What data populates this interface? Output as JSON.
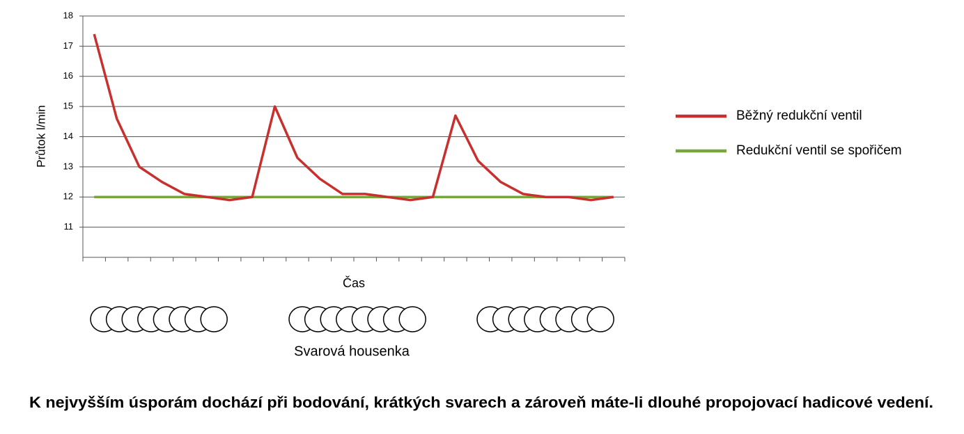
{
  "chart_data": {
    "type": "line",
    "y_label": "Průtok l/min",
    "x_label": "Čas",
    "annotations": [
      "Svarová housenka"
    ],
    "caption": "K nejvyšším úsporám dochází při bodování, krátkých svarech a zároveň máte-li dlouhé propojovací hadicové vedení.",
    "categories": [
      null,
      null,
      null,
      null,
      null,
      null,
      null,
      null,
      null,
      null,
      null,
      null,
      null,
      null,
      null,
      null,
      null,
      null,
      null,
      null,
      null,
      null,
      null,
      null
    ],
    "series": [
      {
        "name": "Běžný redukční ventil",
        "color": "#c8302e",
        "values": [
          17.4,
          14.6,
          13.0,
          12.5,
          12.1,
          12.0,
          11.9,
          12.0,
          15.0,
          13.3,
          12.6,
          12.1,
          12.1,
          12.0,
          11.9,
          12.0,
          14.7,
          13.2,
          12.5,
          12.1,
          12.0,
          12.0,
          11.9,
          12.0
        ]
      },
      {
        "name": "Redukční ventil se spořičem",
        "color": "#77a73c",
        "values": [
          12,
          12,
          12,
          12,
          12,
          12,
          12,
          12,
          12,
          12,
          12,
          12,
          12,
          12,
          12,
          12,
          12,
          12,
          12,
          12,
          12,
          12,
          12,
          12
        ]
      }
    ],
    "ylim": [
      10,
      18
    ],
    "yticks": [
      11,
      12,
      13,
      14,
      15,
      16,
      17,
      18
    ],
    "grid": true,
    "legend": "right"
  }
}
